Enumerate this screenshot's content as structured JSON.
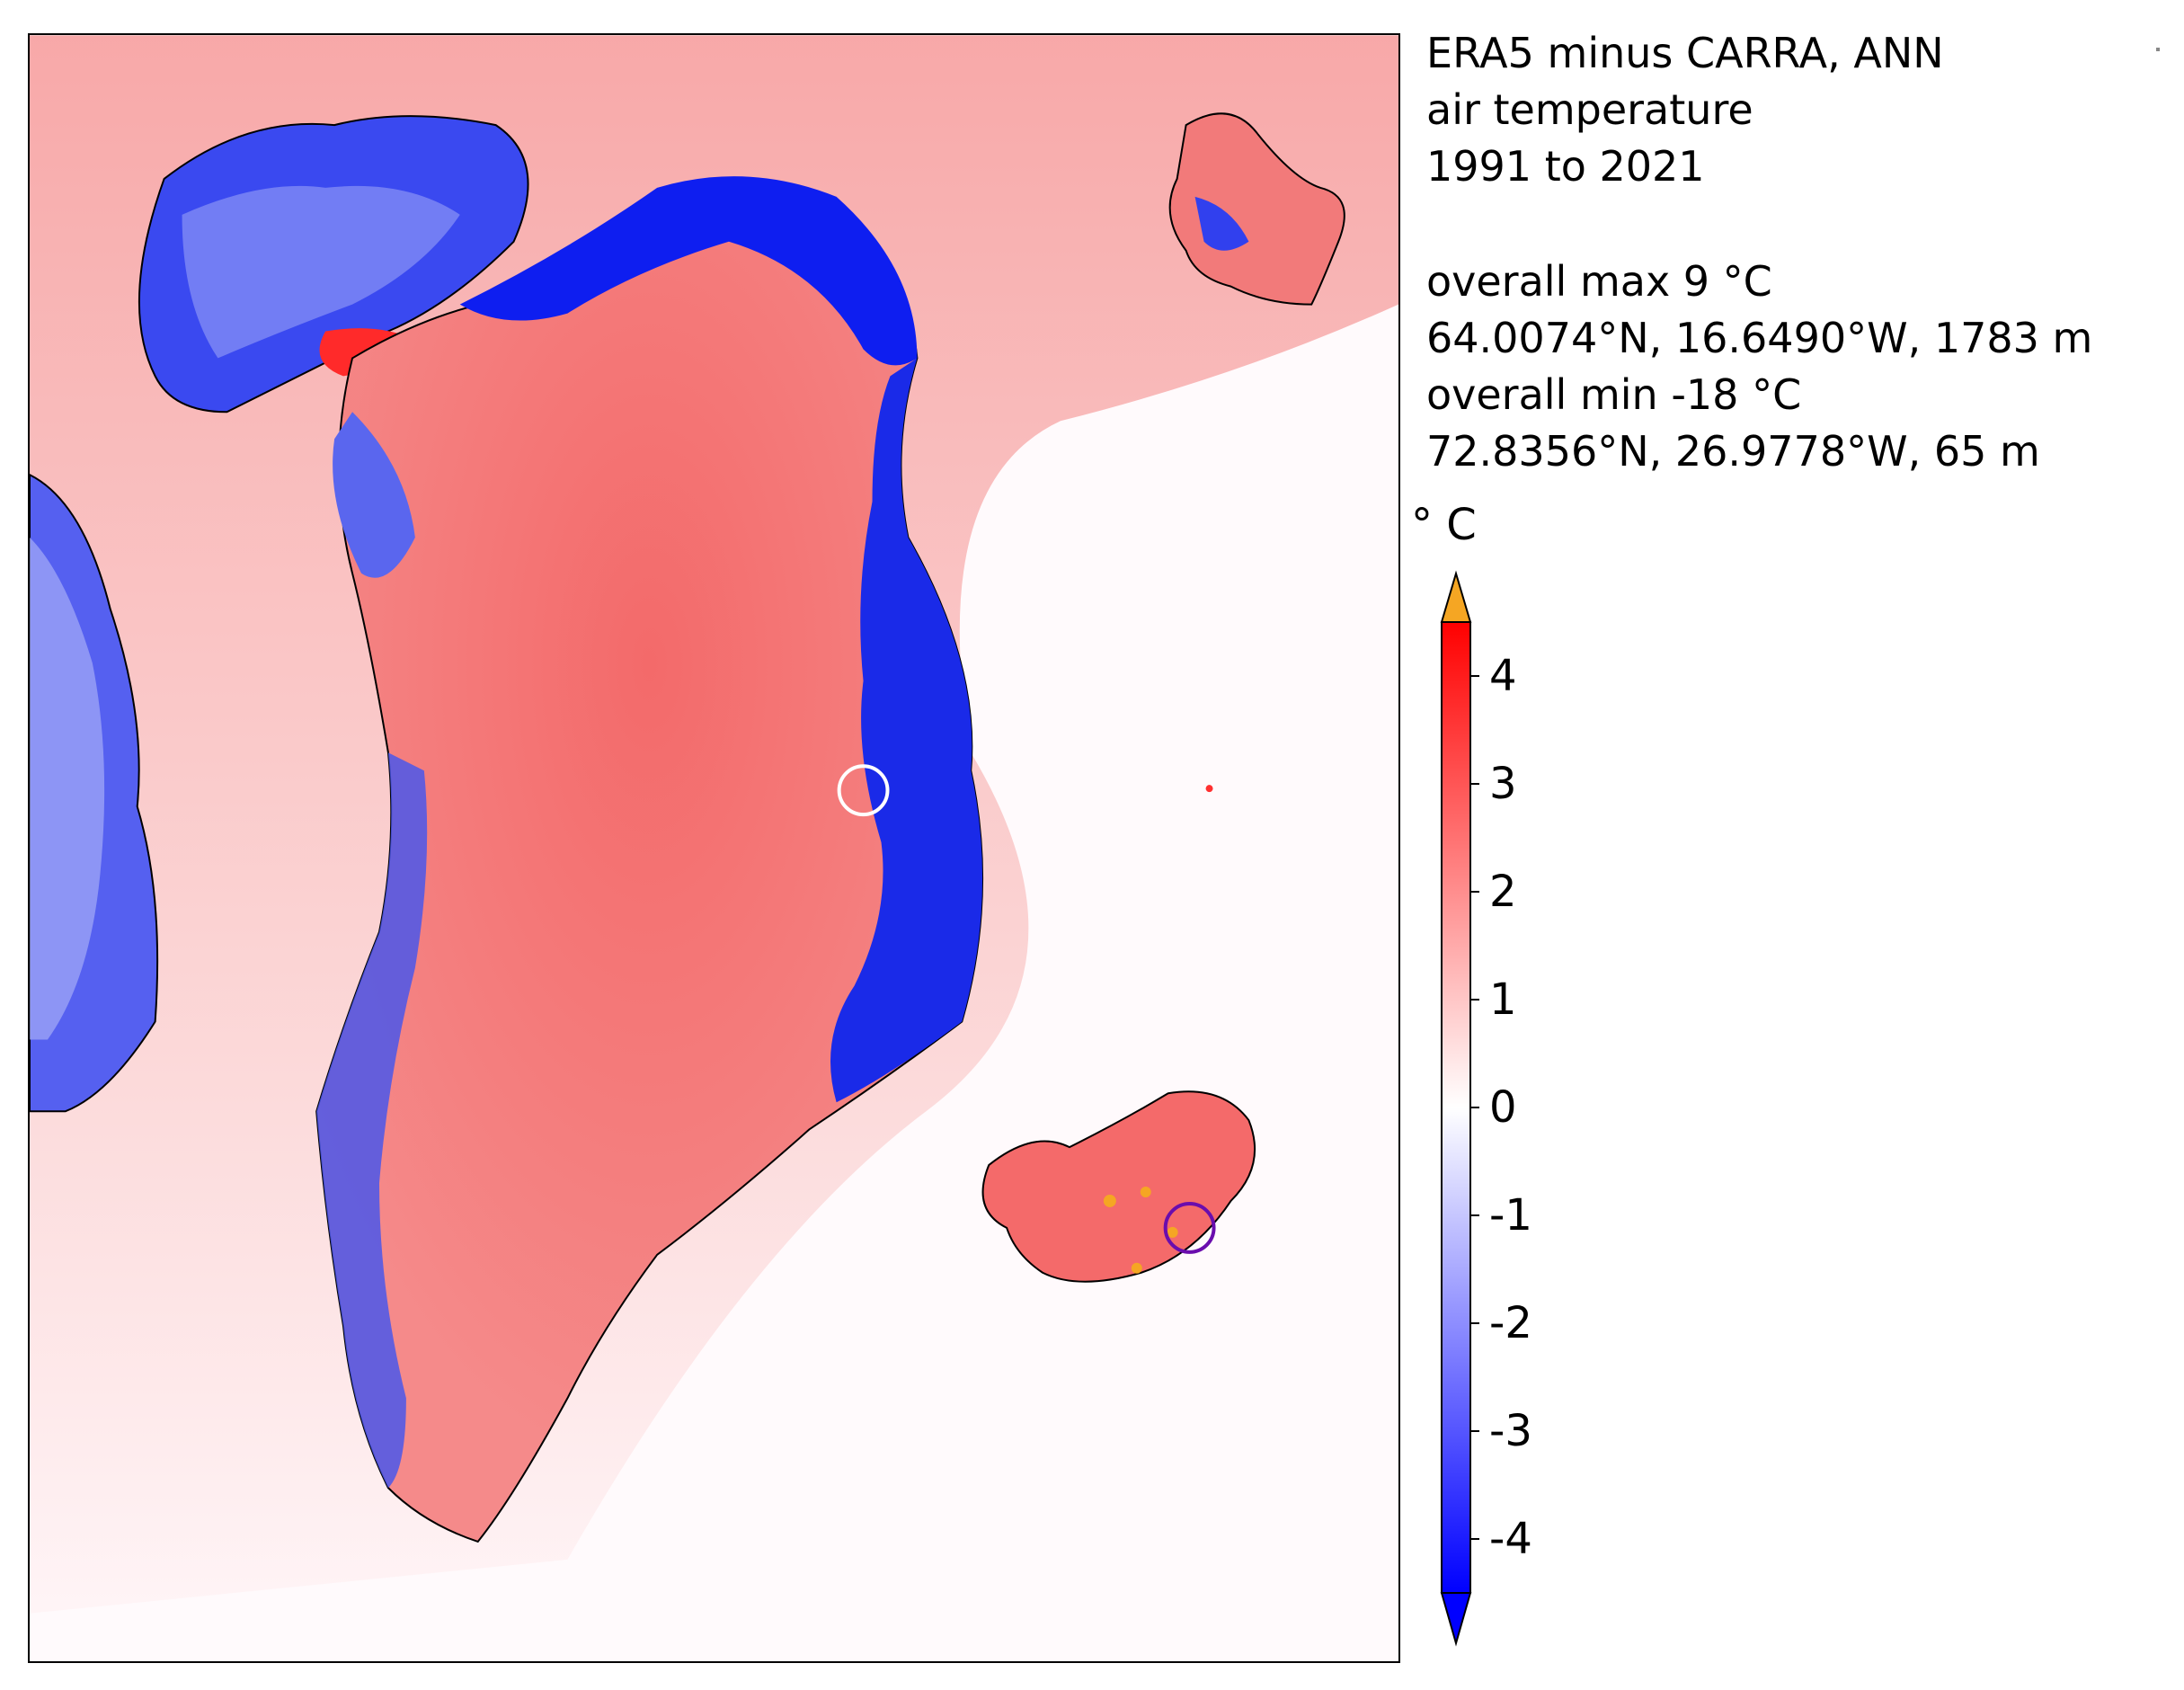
{
  "title": {
    "line1": "ERA5 minus CARRA, ANN",
    "line2": "air temperature",
    "line3": "1991 to 2021"
  },
  "stats": {
    "max_label": "overall max 9 °C",
    "max_location": "64.0074°N, 16.6490°W, 1783 m",
    "min_label": "overall min -18 °C",
    "min_location": "72.8356°N, 26.9778°W, 65 m"
  },
  "colorbar": {
    "unit": "° C",
    "range": [
      -4.5,
      4.5
    ],
    "ticks": [
      "4",
      "3",
      "2",
      "1",
      "0",
      "-1",
      "-2",
      "-3",
      "-4"
    ],
    "extend": "both",
    "over_color": "#f5a623",
    "under_color": "#0000ff",
    "low_color": "#0000ff",
    "mid_color": "#ffffff",
    "high_color": "#ff0000"
  },
  "map": {
    "colors": {
      "ocean_background": "#fffafc",
      "warm_bias": "#f59a9a",
      "ice_sheet": "#f47b7b",
      "cold_bias": "#1f2fe8",
      "coastline": "#000000"
    },
    "markers": [
      {
        "name": "max-marker",
        "color": "#ffffff",
        "lat": "64.0074°N",
        "lon": "16.6490°W"
      },
      {
        "name": "min-marker",
        "color": "#6a0dad",
        "lat": "72.8356°N",
        "lon": "26.9778°W"
      }
    ]
  }
}
